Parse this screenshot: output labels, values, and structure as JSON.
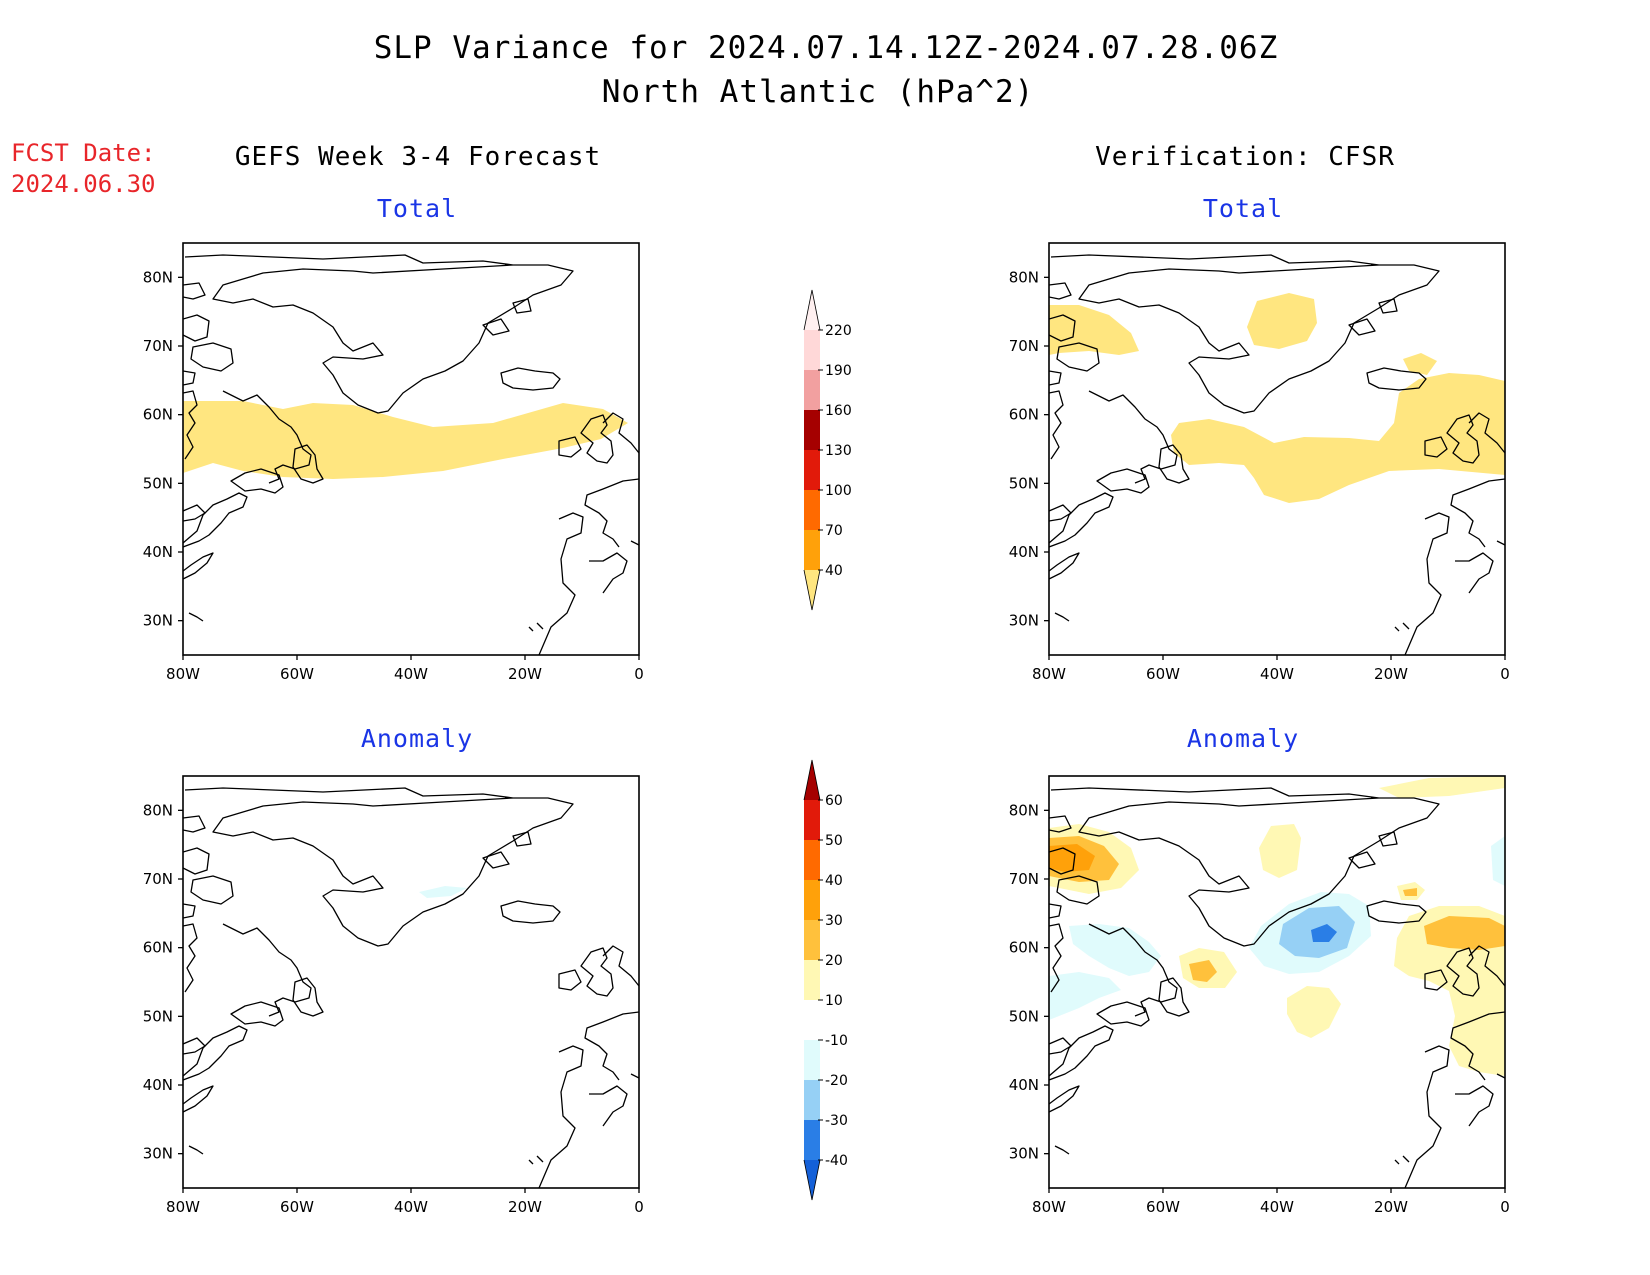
{
  "header": {
    "title_line1": "SLP Variance for 2024.07.14.12Z-2024.07.28.06Z",
    "title_line2": "North Atlantic (hPa^2)",
    "fcst_label": "FCST Date:",
    "fcst_date": "2024.06.30"
  },
  "columns": {
    "left_title": "GEFS Week 3-4 Forecast",
    "right_title": "Verification: CFSR"
  },
  "panels": {
    "top_left_label": "Total",
    "top_right_label": "Total",
    "bottom_left_label": "Anomaly",
    "bottom_right_label": "Anomaly"
  },
  "axes": {
    "lon_labels": [
      "80W",
      "60W",
      "40W",
      "20W",
      "0"
    ],
    "lat_labels": [
      "80N",
      "70N",
      "60N",
      "50N",
      "40N",
      "30N"
    ],
    "lon_range": [
      -80,
      0
    ],
    "lat_range": [
      25,
      85
    ]
  },
  "colorbars": {
    "total": {
      "levels": [
        "40",
        "70",
        "100",
        "130",
        "160",
        "190",
        "220"
      ],
      "colors": [
        "#ffe680",
        "#ffa10a",
        "#ff6a00",
        "#e11a0a",
        "#a50000",
        "#f2a0a0",
        "#ffd8d8",
        "#fff0f0"
      ]
    },
    "anomaly": {
      "levels": [
        "-40",
        "-30",
        "-20",
        "-10",
        "10",
        "20",
        "30",
        "40",
        "50",
        "60"
      ],
      "colors": [
        "#1460d8",
        "#2a7ee6",
        "#96d0f5",
        "#e0fbfc",
        "#ffffff",
        "#fff8b4",
        "#ffc13c",
        "#ffa10a",
        "#ff6a00",
        "#e11a0a",
        "#a50000"
      ]
    }
  }
}
